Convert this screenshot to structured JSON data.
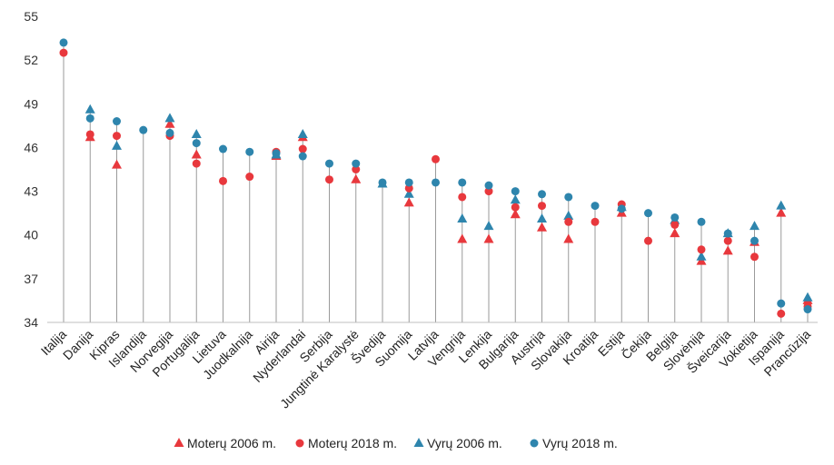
{
  "colors": {
    "women": "#e8383d",
    "men": "#2e85ad",
    "stem": "#9a9a9a",
    "axis": "#bfbfbf"
  },
  "legend": [
    {
      "label": "Moterų 2006 m.",
      "marker": "triangle",
      "color": "#e8383d"
    },
    {
      "label": "Moterų 2018 m.",
      "marker": "circle",
      "color": "#e8383d"
    },
    {
      "label": "Vyrų 2006 m.",
      "marker": "triangle",
      "color": "#2e85ad"
    },
    {
      "label": "Vyrų 2018 m.",
      "marker": "circle",
      "color": "#2e85ad"
    }
  ],
  "chart_data": {
    "type": "scatter",
    "title": "",
    "xlabel": "",
    "ylabel": "",
    "ylim": [
      34,
      55
    ],
    "yticks": [
      34,
      37,
      40,
      43,
      46,
      49,
      52,
      55
    ],
    "grid": false,
    "legend_position": "bottom",
    "categories": [
      "Italija",
      "Danija",
      "Kipras",
      "Islandija",
      "Norvegija",
      "Portugalija",
      "Lietuva",
      "Juodkalnija",
      "Airija",
      "Nyderlandai",
      "Serbija",
      "Jungtinė Karalystė",
      "Švedija",
      "Suomija",
      "Latvija",
      "Vengrija",
      "Lenkija",
      "Bulgarija",
      "Austrija",
      "Slovakija",
      "Kroatija",
      "Estija",
      "Čekija",
      "Belgija",
      "Slovėnija",
      "Šveicarija",
      "Vokietija",
      "Ispanija",
      "Prancūzija"
    ],
    "series": [
      {
        "name": "Moterų 2006 m.",
        "values": [
          null,
          46.7,
          44.8,
          null,
          47.6,
          45.5,
          null,
          null,
          45.4,
          46.7,
          null,
          43.8,
          null,
          42.2,
          null,
          39.7,
          39.7,
          41.4,
          40.5,
          39.7,
          null,
          41.5,
          null,
          40.1,
          38.2,
          38.9,
          39.5,
          41.5,
          35.5
        ]
      },
      {
        "name": "Moterų 2018 m.",
        "values": [
          52.5,
          46.9,
          46.8,
          null,
          46.8,
          44.9,
          43.7,
          44.0,
          45.7,
          45.9,
          43.8,
          44.5,
          null,
          43.2,
          45.2,
          42.6,
          43.0,
          41.9,
          42.0,
          40.9,
          40.9,
          42.1,
          39.6,
          40.7,
          39.0,
          39.6,
          38.5,
          34.6,
          35.1
        ]
      },
      {
        "name": "Vyrų 2006 m.",
        "values": [
          null,
          48.6,
          46.1,
          null,
          48.0,
          46.9,
          null,
          null,
          45.5,
          46.9,
          null,
          null,
          43.5,
          42.8,
          null,
          41.1,
          40.6,
          42.4,
          41.1,
          41.3,
          null,
          41.9,
          null,
          41.0,
          38.5,
          40.1,
          40.6,
          42.0,
          35.7
        ]
      },
      {
        "name": "Vyrų 2018 m.",
        "values": [
          53.2,
          48.0,
          47.8,
          47.2,
          47.0,
          46.3,
          45.9,
          45.7,
          45.6,
          45.4,
          44.9,
          44.9,
          43.6,
          43.6,
          43.6,
          43.6,
          43.4,
          43.0,
          42.8,
          42.6,
          42.0,
          41.8,
          41.5,
          41.2,
          40.9,
          40.1,
          39.6,
          35.3,
          34.9
        ]
      }
    ]
  }
}
